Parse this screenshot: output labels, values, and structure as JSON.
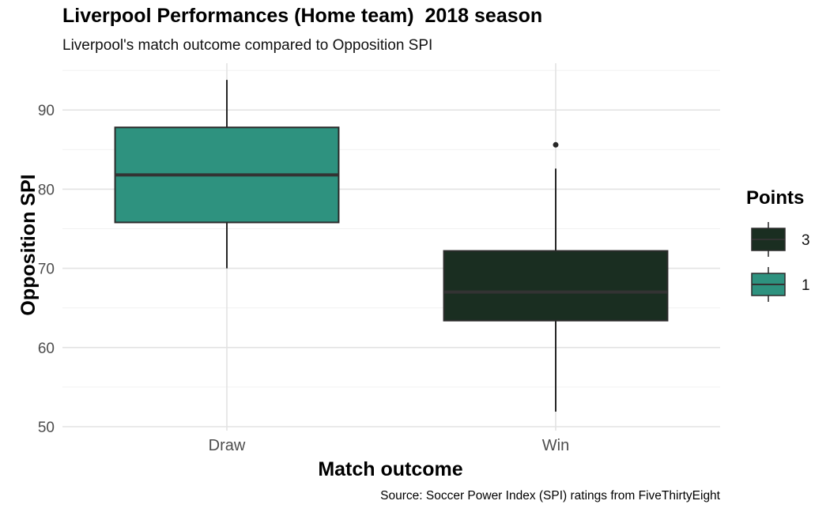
{
  "chart_data": {
    "type": "box",
    "title": "Liverpool Performances (Home team)  2018 season",
    "subtitle": "Liverpool's match outcome compared to Opposition SPI",
    "xlabel": "Match outcome",
    "ylabel": "Opposition SPI",
    "caption": "Source: Soccer Power Index (SPI) ratings from FiveThirtyEight",
    "ylim": [
      49,
      95
    ],
    "yticks": [
      50,
      60,
      70,
      80,
      90
    ],
    "categories": [
      "Draw",
      "Win"
    ],
    "boxes": [
      {
        "category": "Draw",
        "points": "1",
        "min": 70.0,
        "q1": 75.8,
        "median": 81.8,
        "q3": 87.8,
        "max": 93.8,
        "outliers": [],
        "fill": "#2e927f"
      },
      {
        "category": "Win",
        "points": "3",
        "min": 51.9,
        "q1": 63.4,
        "median": 67.0,
        "q3": 72.2,
        "max": 82.6,
        "outliers": [
          85.6
        ],
        "fill": "#1a2e21"
      }
    ],
    "legend": {
      "title": "Points",
      "position": "right",
      "entries": [
        {
          "label": "3",
          "fill": "#1a2e21"
        },
        {
          "label": "1",
          "fill": "#2e927f"
        }
      ]
    },
    "grid": true
  }
}
